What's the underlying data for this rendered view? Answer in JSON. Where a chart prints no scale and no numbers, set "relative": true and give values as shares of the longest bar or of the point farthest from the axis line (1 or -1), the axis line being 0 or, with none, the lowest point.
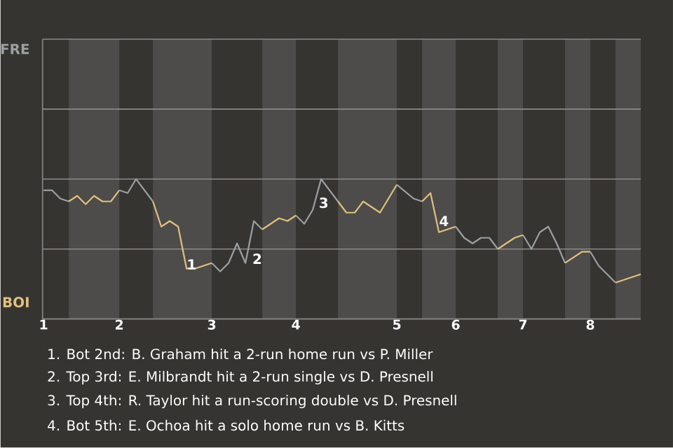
{
  "chart_data": {
    "type": "line",
    "relative": true,
    "marker": "none",
    "ref_lines": [
      {
        "axis": "y",
        "value": 0.5,
        "color": "#8a8a88"
      },
      {
        "axis": "y",
        "value": 1.0,
        "color": "#8a8a88"
      },
      {
        "axis": "y",
        "value": 1.5,
        "color": "#8a8a88"
      },
      {
        "axis": "y",
        "value": 2.0,
        "color": "#8a8a88"
      }
    ],
    "categories": [
      "1",
      null,
      null,
      null,
      null,
      null,
      null,
      null,
      null,
      "2",
      null,
      null,
      null,
      null,
      null,
      null,
      null,
      null,
      null,
      null,
      "3",
      null,
      null,
      null,
      null,
      null,
      null,
      null,
      null,
      null,
      "4",
      null,
      null,
      null,
      null,
      null,
      null,
      null,
      null,
      null,
      null,
      null,
      "5",
      null,
      null,
      null,
      null,
      null,
      null,
      "6",
      null,
      null,
      null,
      null,
      null,
      null,
      null,
      "7",
      null,
      null,
      null,
      null,
      null,
      null,
      null,
      "8",
      null,
      null,
      null,
      null,
      null,
      null
    ],
    "series": [
      {
        "color": "#9aa0a3",
        "values": [
          0.92,
          0.92,
          0.86,
          0.84,
          null,
          null,
          null,
          null,
          null,
          null,
          null,
          null,
          null,
          null,
          null,
          null,
          null,
          null,
          null,
          null,
          null,
          null,
          null,
          null,
          null,
          null,
          null,
          null,
          null,
          null,
          null,
          null,
          null,
          null,
          null,
          null,
          null,
          null,
          null,
          null,
          null,
          null,
          null,
          null,
          null,
          null,
          null,
          null,
          null,
          null,
          null,
          null,
          null,
          null,
          null,
          null,
          null,
          null,
          null,
          null,
          null,
          null,
          null,
          null,
          null,
          null,
          null,
          null,
          null,
          null,
          null,
          null
        ]
      },
      {
        "color": "#e0c07e",
        "values": [
          null,
          null,
          null,
          0.84,
          0.88,
          0.82,
          0.88,
          0.84,
          0.84,
          0.92,
          null,
          null,
          null,
          null,
          null,
          null,
          null,
          null,
          null,
          null,
          null,
          null,
          null,
          null,
          null,
          null,
          null,
          null,
          null,
          null,
          null,
          null,
          null,
          null,
          null,
          null,
          null,
          null,
          null,
          null,
          null,
          null,
          null,
          null,
          null,
          null,
          null,
          null,
          null,
          null,
          null,
          null,
          null,
          null,
          null,
          null,
          null,
          null,
          null,
          null,
          null,
          null,
          null,
          null,
          null,
          null,
          null,
          null,
          null,
          null,
          null,
          null
        ]
      },
      {
        "color": "#9aa0a3",
        "values": [
          null,
          null,
          null,
          null,
          null,
          null,
          null,
          null,
          null,
          0.92,
          0.9,
          1.0,
          0.92,
          0.84,
          null,
          null,
          null,
          null,
          null,
          null,
          null,
          null,
          null,
          null,
          null,
          null,
          null,
          null,
          null,
          null,
          null,
          null,
          null,
          null,
          null,
          null,
          null,
          null,
          null,
          null,
          null,
          null,
          null,
          null,
          null,
          null,
          null,
          null,
          null,
          null,
          null,
          null,
          null,
          null,
          null,
          null,
          null,
          null,
          null,
          null,
          null,
          null,
          null,
          null,
          null,
          null,
          null,
          null,
          null,
          null,
          null,
          null
        ]
      },
      {
        "color": "#e0c07e",
        "values": [
          null,
          null,
          null,
          null,
          null,
          null,
          null,
          null,
          null,
          null,
          null,
          null,
          null,
          0.84,
          0.66,
          0.7,
          0.66,
          0.36,
          0.36,
          0.38,
          0.4,
          null,
          null,
          null,
          null,
          null,
          null,
          null,
          null,
          null,
          null,
          null,
          null,
          null,
          null,
          null,
          null,
          null,
          null,
          null,
          null,
          null,
          null,
          null,
          null,
          null,
          null,
          null,
          null,
          null,
          null,
          null,
          null,
          null,
          null,
          null,
          null,
          null,
          null,
          null,
          null,
          null,
          null,
          null,
          null,
          null,
          null,
          null,
          null,
          null,
          null,
          null
        ]
      },
      {
        "color": "#9aa0a3",
        "values": [
          null,
          null,
          null,
          null,
          null,
          null,
          null,
          null,
          null,
          null,
          null,
          null,
          null,
          null,
          null,
          null,
          null,
          null,
          null,
          null,
          0.4,
          0.34,
          0.4,
          0.54,
          0.4,
          0.7,
          0.64,
          null,
          null,
          null,
          null,
          null,
          null,
          null,
          null,
          null,
          null,
          null,
          null,
          null,
          null,
          null,
          null,
          null,
          null,
          null,
          null,
          null,
          null,
          null,
          null,
          null,
          null,
          null,
          null,
          null,
          null,
          null,
          null,
          null,
          null,
          null,
          null,
          null,
          null,
          null,
          null,
          null,
          null,
          null,
          null,
          null
        ]
      },
      {
        "color": "#e0c07e",
        "values": [
          null,
          null,
          null,
          null,
          null,
          null,
          null,
          null,
          null,
          null,
          null,
          null,
          null,
          null,
          null,
          null,
          null,
          null,
          null,
          null,
          null,
          null,
          null,
          null,
          null,
          null,
          0.64,
          0.68,
          0.72,
          0.7,
          0.74,
          null,
          null,
          null,
          null,
          null,
          null,
          null,
          null,
          null,
          null,
          null,
          null,
          null,
          null,
          null,
          null,
          null,
          null,
          null,
          null,
          null,
          null,
          null,
          null,
          null,
          null,
          null,
          null,
          null,
          null,
          null,
          null,
          null,
          null,
          null,
          null,
          null,
          null,
          null,
          null,
          null
        ]
      },
      {
        "color": "#9aa0a3",
        "values": [
          null,
          null,
          null,
          null,
          null,
          null,
          null,
          null,
          null,
          null,
          null,
          null,
          null,
          null,
          null,
          null,
          null,
          null,
          null,
          null,
          null,
          null,
          null,
          null,
          null,
          null,
          null,
          null,
          null,
          null,
          0.74,
          0.68,
          0.78,
          1.0,
          0.92,
          0.84,
          null,
          null,
          null,
          null,
          null,
          null,
          null,
          null,
          null,
          null,
          null,
          null,
          null,
          null,
          null,
          null,
          null,
          null,
          null,
          null,
          null,
          null,
          null,
          null,
          null,
          null,
          null,
          null,
          null,
          null,
          null,
          null,
          null,
          null,
          null,
          null
        ]
      },
      {
        "color": "#e0c07e",
        "values": [
          null,
          null,
          null,
          null,
          null,
          null,
          null,
          null,
          null,
          null,
          null,
          null,
          null,
          null,
          null,
          null,
          null,
          null,
          null,
          null,
          null,
          null,
          null,
          null,
          null,
          null,
          null,
          null,
          null,
          null,
          null,
          null,
          null,
          null,
          null,
          0.84,
          0.76,
          0.76,
          0.84,
          0.8,
          0.76,
          0.86,
          0.96,
          null,
          null,
          null,
          null,
          null,
          null,
          null,
          null,
          null,
          null,
          null,
          null,
          null,
          null,
          null,
          null,
          null,
          null,
          null,
          null,
          null,
          null,
          null,
          null,
          null,
          null,
          null,
          null,
          null
        ]
      },
      {
        "color": "#9aa0a3",
        "values": [
          null,
          null,
          null,
          null,
          null,
          null,
          null,
          null,
          null,
          null,
          null,
          null,
          null,
          null,
          null,
          null,
          null,
          null,
          null,
          null,
          null,
          null,
          null,
          null,
          null,
          null,
          null,
          null,
          null,
          null,
          null,
          null,
          null,
          null,
          null,
          null,
          null,
          null,
          null,
          null,
          null,
          null,
          0.96,
          0.91,
          0.86,
          0.84,
          null,
          null,
          null,
          null,
          null,
          null,
          null,
          null,
          null,
          null,
          null,
          null,
          null,
          null,
          null,
          null,
          null,
          null,
          null,
          null,
          null,
          null,
          null,
          null,
          null,
          null
        ]
      },
      {
        "color": "#e0c07e",
        "values": [
          null,
          null,
          null,
          null,
          null,
          null,
          null,
          null,
          null,
          null,
          null,
          null,
          null,
          null,
          null,
          null,
          null,
          null,
          null,
          null,
          null,
          null,
          null,
          null,
          null,
          null,
          null,
          null,
          null,
          null,
          null,
          null,
          null,
          null,
          null,
          null,
          null,
          null,
          null,
          null,
          null,
          null,
          null,
          null,
          null,
          0.84,
          0.9,
          0.62,
          0.64,
          0.66,
          null,
          null,
          null,
          null,
          null,
          null,
          null,
          null,
          null,
          null,
          null,
          null,
          null,
          null,
          null,
          null,
          null,
          null,
          null,
          null,
          null,
          null
        ]
      },
      {
        "color": "#9aa0a3",
        "values": [
          null,
          null,
          null,
          null,
          null,
          null,
          null,
          null,
          null,
          null,
          null,
          null,
          null,
          null,
          null,
          null,
          null,
          null,
          null,
          null,
          null,
          null,
          null,
          null,
          null,
          null,
          null,
          null,
          null,
          null,
          null,
          null,
          null,
          null,
          null,
          null,
          null,
          null,
          null,
          null,
          null,
          null,
          null,
          null,
          null,
          null,
          null,
          null,
          null,
          0.66,
          0.58,
          0.54,
          0.58,
          0.58,
          0.5,
          null,
          null,
          null,
          null,
          null,
          null,
          null,
          null,
          null,
          null,
          null,
          null,
          null,
          null,
          null,
          null,
          null
        ]
      },
      {
        "color": "#e0c07e",
        "values": [
          null,
          null,
          null,
          null,
          null,
          null,
          null,
          null,
          null,
          null,
          null,
          null,
          null,
          null,
          null,
          null,
          null,
          null,
          null,
          null,
          null,
          null,
          null,
          null,
          null,
          null,
          null,
          null,
          null,
          null,
          null,
          null,
          null,
          null,
          null,
          null,
          null,
          null,
          null,
          null,
          null,
          null,
          null,
          null,
          null,
          null,
          null,
          null,
          null,
          null,
          null,
          null,
          null,
          null,
          0.5,
          0.54,
          0.58,
          0.6,
          null,
          null,
          null,
          null,
          null,
          null,
          null,
          null,
          null,
          null,
          null,
          null,
          null,
          null
        ]
      },
      {
        "color": "#9aa0a3",
        "values": [
          null,
          null,
          null,
          null,
          null,
          null,
          null,
          null,
          null,
          null,
          null,
          null,
          null,
          null,
          null,
          null,
          null,
          null,
          null,
          null,
          null,
          null,
          null,
          null,
          null,
          null,
          null,
          null,
          null,
          null,
          null,
          null,
          null,
          null,
          null,
          null,
          null,
          null,
          null,
          null,
          null,
          null,
          null,
          null,
          null,
          null,
          null,
          null,
          null,
          null,
          null,
          null,
          null,
          null,
          null,
          null,
          null,
          0.6,
          0.5,
          0.62,
          0.66,
          0.54,
          0.4,
          null,
          null,
          null,
          null,
          null,
          null,
          null,
          null,
          null
        ]
      },
      {
        "color": "#e0c07e",
        "values": [
          null,
          null,
          null,
          null,
          null,
          null,
          null,
          null,
          null,
          null,
          null,
          null,
          null,
          null,
          null,
          null,
          null,
          null,
          null,
          null,
          null,
          null,
          null,
          null,
          null,
          null,
          null,
          null,
          null,
          null,
          null,
          null,
          null,
          null,
          null,
          null,
          null,
          null,
          null,
          null,
          null,
          null,
          null,
          null,
          null,
          null,
          null,
          null,
          null,
          null,
          null,
          null,
          null,
          null,
          null,
          null,
          null,
          null,
          null,
          null,
          null,
          null,
          0.4,
          0.44,
          0.48,
          0.48,
          null,
          null,
          null,
          null,
          null,
          null
        ]
      },
      {
        "color": "#9aa0a3",
        "values": [
          null,
          null,
          null,
          null,
          null,
          null,
          null,
          null,
          null,
          null,
          null,
          null,
          null,
          null,
          null,
          null,
          null,
          null,
          null,
          null,
          null,
          null,
          null,
          null,
          null,
          null,
          null,
          null,
          null,
          null,
          null,
          null,
          null,
          null,
          null,
          null,
          null,
          null,
          null,
          null,
          null,
          null,
          null,
          null,
          null,
          null,
          null,
          null,
          null,
          null,
          null,
          null,
          null,
          null,
          null,
          null,
          null,
          null,
          null,
          null,
          null,
          null,
          null,
          null,
          null,
          0.48,
          0.38,
          0.32,
          0.26,
          null,
          null,
          null
        ]
      },
      {
        "color": "#e0c07e",
        "values": [
          null,
          null,
          null,
          null,
          null,
          null,
          null,
          null,
          null,
          null,
          null,
          null,
          null,
          null,
          null,
          null,
          null,
          null,
          null,
          null,
          null,
          null,
          null,
          null,
          null,
          null,
          null,
          null,
          null,
          null,
          null,
          null,
          null,
          null,
          null,
          null,
          null,
          null,
          null,
          null,
          null,
          null,
          null,
          null,
          null,
          null,
          null,
          null,
          null,
          null,
          null,
          null,
          null,
          null,
          null,
          null,
          null,
          null,
          null,
          null,
          null,
          null,
          null,
          null,
          null,
          null,
          null,
          null,
          0.26,
          0.28,
          0.3,
          0.32
        ]
      }
    ],
    "annotations": [
      "FRE",
      "1",
      "2",
      "3",
      "4",
      "BOI",
      "1. Bot 2nd: B. Graham hit a 2-run home run vs P. Miller",
      "2. Top 3rd: E. Milbrandt hit a 2-run single vs D. Presnell",
      "3. Top 4th: R. Taylor hit a run-scoring double vs D. Presnell",
      "4. Bot 5th: E. Ochoa hit a solo home run vs B. Kitts"
    ]
  }
}
